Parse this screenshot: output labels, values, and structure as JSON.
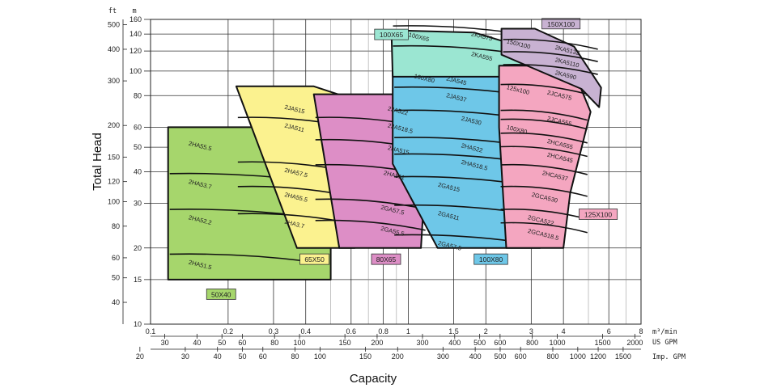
{
  "chart_data": {
    "type": "area",
    "title": "",
    "xlabel": "Capacity",
    "ylabel": "Total Head",
    "x_scale": "log",
    "y_scale": "log",
    "xlim": [
      0.1,
      8
    ],
    "ylim": [
      10,
      160
    ],
    "grid": true,
    "x_unit": "m³/min",
    "y_unit_left": "ft",
    "y_unit_right": "m",
    "x_ticks": [
      "0.1",
      "0.2",
      "0.3",
      "0.4",
      "0.6",
      "0.8",
      "1",
      "1.5",
      "2",
      "3",
      "4",
      "6",
      "8"
    ],
    "y_ticks_m": [
      "10",
      "15",
      "20",
      "30",
      "40",
      "50",
      "60",
      "80",
      "100",
      "120",
      "140",
      "160"
    ],
    "y_ticks_ft": [
      "40",
      "50",
      "60",
      "80",
      "100",
      "120",
      "150",
      "200",
      "300",
      "400",
      "500"
    ],
    "x2_label": "US GPM",
    "x2_ticks": [
      "30",
      "40",
      "50",
      "60",
      "80",
      "100",
      "150",
      "200",
      "300",
      "400",
      "500",
      "600",
      "800",
      "1000",
      "1500",
      "2000"
    ],
    "x3_label": "Imp. GPM",
    "x3_ticks": [
      "20",
      "30",
      "40",
      "50",
      "60",
      "80",
      "100",
      "150",
      "200",
      "300",
      "400",
      "500",
      "600",
      "800",
      "1000",
      "1200",
      "1500"
    ],
    "series": [
      {
        "name": "50X40",
        "color": "#a6d66c",
        "x": [
          0.117,
          0.38,
          0.5,
          0.5,
          0.33,
          0.117
        ],
        "y": [
          60,
          60,
          54,
          15,
          15,
          15
        ],
        "models": [
          {
            "label": "2HA55.5",
            "x": 0.14,
            "y": 51
          },
          {
            "label": "2HA53.7",
            "x": 0.14,
            "y": 36
          },
          {
            "label": "2HA52.2",
            "x": 0.14,
            "y": 26
          },
          {
            "label": "2HA51.5",
            "x": 0.14,
            "y": 17.3
          }
        ]
      },
      {
        "name": "65X50",
        "color": "#fbf28f",
        "x": [
          0.215,
          0.43,
          0.62,
          0.62,
          0.52,
          0.45,
          0.37
        ],
        "y": [
          87,
          87,
          77,
          20,
          20,
          20,
          20
        ],
        "models": [
          {
            "label": "2JA515",
            "x": 0.33,
            "y": 71
          },
          {
            "label": "2JA511",
            "x": 0.33,
            "y": 60
          },
          {
            "label": "2HA57.5",
            "x": 0.33,
            "y": 40
          },
          {
            "label": "2HA55.5",
            "x": 0.33,
            "y": 32
          },
          {
            "label": "2HA3.7",
            "x": 0.33,
            "y": 25
          }
        ]
      },
      {
        "name": "80X65",
        "color": "#dd8ec6",
        "x": [
          0.43,
          0.9,
          1.2,
          1.12,
          0.72,
          0.54
        ],
        "y": [
          81,
          81,
          64,
          20,
          20,
          20
        ],
        "models": [
          {
            "label": "2JA522",
            "x": 0.83,
            "y": 70
          },
          {
            "label": "2JA518.5",
            "x": 0.83,
            "y": 60
          },
          {
            "label": "2HA515",
            "x": 0.83,
            "y": 49
          },
          {
            "label": "2HA511",
            "x": 0.8,
            "y": 39
          },
          {
            "label": "2GA57.5",
            "x": 0.78,
            "y": 28.5
          },
          {
            "label": "2GA55.5",
            "x": 0.78,
            "y": 23.5
          }
        ]
      },
      {
        "name": "100X80",
        "color": "#6ec7e8",
        "x": [
          0.87,
          1.75,
          2.4,
          3.0,
          3.25,
          2.25,
          1.3,
          0.87
        ],
        "y": [
          101,
          101,
          95,
          64,
          20,
          20,
          20,
          43
        ],
        "models": [
          {
            "label": "100X80",
            "x": 1.05,
            "y": 94
          },
          {
            "label": "2JA545",
            "x": 1.4,
            "y": 92
          },
          {
            "label": "2JA537",
            "x": 1.4,
            "y": 79
          },
          {
            "label": "2JA530",
            "x": 1.6,
            "y": 64
          },
          {
            "label": "2HA522",
            "x": 1.6,
            "y": 50
          },
          {
            "label": "2HA518.5",
            "x": 1.6,
            "y": 43
          },
          {
            "label": "2GA515",
            "x": 1.3,
            "y": 35
          },
          {
            "label": "2GA511",
            "x": 1.3,
            "y": 27
          },
          {
            "label": "2GA57.5",
            "x": 1.3,
            "y": 20.6
          }
        ]
      },
      {
        "name": "100X65",
        "color": "#9be6d2",
        "x": [
          0.86,
          1.8,
          2.4,
          3.1,
          3.1,
          0.87
        ],
        "y": [
          145,
          142,
          130,
          112,
          95,
          95
        ],
        "models": [
          {
            "label": "100X65",
            "x": 1.0,
            "y": 137
          },
          {
            "label": "2KA575",
            "x": 1.75,
            "y": 138
          },
          {
            "label": "2KA555",
            "x": 1.75,
            "y": 115
          }
        ]
      },
      {
        "name": "125X100",
        "color": "#f4a6c0",
        "x": [
          2.25,
          3.5,
          4.5,
          5.1,
          4.25,
          4.0,
          2.4,
          2.25
        ],
        "y": [
          105,
          105,
          94,
          69,
          33,
          20,
          20,
          60
        ],
        "models": [
          {
            "label": "125x100",
            "x": 2.4,
            "y": 85
          },
          {
            "label": "2JCA575",
            "x": 3.45,
            "y": 81
          },
          {
            "label": "2JCA555",
            "x": 3.45,
            "y": 64
          },
          {
            "label": "100X80",
            "x": 2.4,
            "y": 59
          },
          {
            "label": "2HCA555",
            "x": 3.45,
            "y": 52
          },
          {
            "label": "2HCA545",
            "x": 3.45,
            "y": 46
          },
          {
            "label": "2HCA537",
            "x": 3.3,
            "y": 39
          },
          {
            "label": "2GCA530",
            "x": 3.0,
            "y": 32
          },
          {
            "label": "2GCA522",
            "x": 2.9,
            "y": 26
          },
          {
            "label": "2GCA518.5",
            "x": 2.9,
            "y": 23
          }
        ]
      },
      {
        "name": "150X100",
        "color": "#c8b2d2",
        "x": [
          2.3,
          3.1,
          4.4,
          5.6,
          5.5,
          4.7,
          2.3
        ],
        "y": [
          147,
          147,
          125,
          86,
          72,
          85,
          116
        ],
        "models": [
          {
            "label": "150X100",
            "x": 2.4,
            "y": 129
          },
          {
            "label": "2KA5132",
            "x": 3.7,
            "y": 122
          },
          {
            "label": "2KA5110",
            "x": 3.7,
            "y": 109
          },
          {
            "label": "2KA590",
            "x": 3.7,
            "y": 97
          }
        ]
      }
    ],
    "size_tags": [
      {
        "label": "50X40",
        "x": 0.165,
        "y": 12.8
      },
      {
        "label": "65X50",
        "x": 0.38,
        "y": 17.6
      },
      {
        "label": "80X65",
        "x": 0.72,
        "y": 17.6
      },
      {
        "label": "100X80",
        "x": 1.8,
        "y": 17.6
      },
      {
        "label": "125X100",
        "x": 4.6,
        "y": 26.5
      },
      {
        "label": "150X100",
        "x": 3.3,
        "y": 150
      },
      {
        "label": "100X65",
        "x": 0.74,
        "y": 136
      }
    ]
  }
}
